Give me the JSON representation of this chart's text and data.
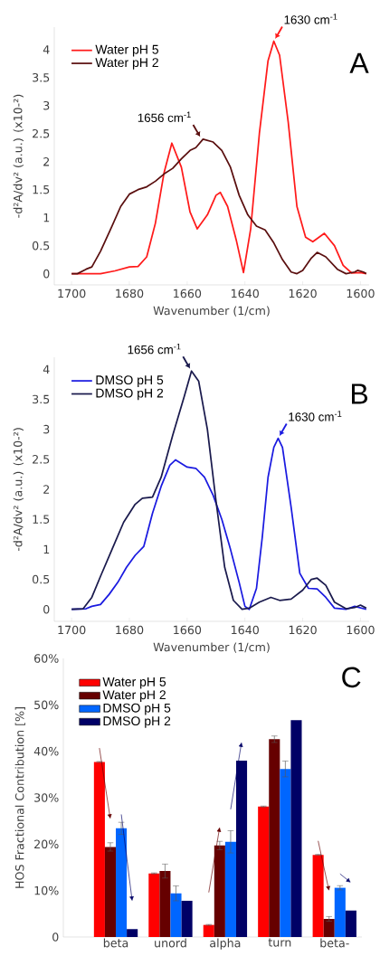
{
  "chart_data": [
    {
      "type": "line",
      "xlabel": "Wavenumber (1/cm)",
      "ylabel": "-d²A/dv² (a.u.) (x10-²)",
      "xlim": [
        1706,
        1597
      ],
      "ylim": [
        -0.2,
        4.4
      ],
      "xticks": [
        1700,
        1680,
        1660,
        1640,
        1620,
        1600
      ],
      "yticks": [
        0,
        0.5,
        1,
        1.5,
        2,
        2.5,
        3,
        3.5,
        4
      ],
      "legend": "top left",
      "annotations": [
        {
          "text": "1630 cm$^{-1}$",
          "x": 1630,
          "y": 4.15
        },
        {
          "text": "1656 cm$^{-1}$",
          "x": 1655,
          "y": 2.4
        },
        "A"
      ],
      "series": [
        {
          "name": "Water pH 5",
          "color": "#ff1a1a",
          "x": [
            1700,
            1690,
            1685,
            1680,
            1677,
            1674,
            1671,
            1668,
            1665.3,
            1662,
            1659,
            1656.5,
            1653,
            1650,
            1648.5,
            1646,
            1643,
            1640.5,
            1638,
            1635,
            1632,
            1630,
            1628,
            1625,
            1622,
            1619,
            1616.5,
            1612.5,
            1609,
            1606,
            1603,
            1600,
            1598
          ],
          "values": [
            0,
            0,
            0.05,
            0.12,
            0.13,
            0.3,
            0.9,
            1.8,
            2.33,
            1.9,
            1.1,
            0.8,
            1.05,
            1.4,
            1.45,
            1.2,
            0.6,
            0.02,
            0.8,
            2.5,
            3.8,
            4.15,
            3.9,
            2.7,
            1.2,
            0.65,
            0.57,
            0.72,
            0.5,
            0.15,
            0.01,
            0.02,
            0
          ]
        },
        {
          "name": "Water pH 2",
          "color": "#5a0f0f",
          "x": [
            1700,
            1698,
            1695,
            1693,
            1690,
            1686,
            1683,
            1680,
            1677,
            1674,
            1671,
            1668,
            1665,
            1662,
            1659,
            1657,
            1654.5,
            1651,
            1648,
            1645,
            1642,
            1639,
            1636,
            1633,
            1630,
            1627,
            1624,
            1622,
            1620,
            1617,
            1615,
            1612,
            1608,
            1605,
            1602,
            1601,
            1599,
            1598
          ],
          "values": [
            0,
            0,
            0.08,
            0.12,
            0.4,
            0.85,
            1.2,
            1.42,
            1.5,
            1.55,
            1.65,
            1.78,
            1.88,
            2.05,
            2.2,
            2.25,
            2.4,
            2.35,
            2.2,
            1.9,
            1.4,
            1.05,
            0.85,
            0.78,
            0.55,
            0.25,
            0.03,
            0,
            0.06,
            0.28,
            0.38,
            0.3,
            0.08,
            0,
            0.03,
            0.06,
            0.03,
            0
          ]
        }
      ]
    },
    {
      "type": "line",
      "xlabel": "Wavenumber (1/cm)",
      "ylabel": "-d²A/dv² (a.u.) (x10-²)",
      "xlim": [
        1706,
        1597
      ],
      "ylim": [
        -0.2,
        4.2
      ],
      "xticks": [
        1700,
        1680,
        1660,
        1640,
        1620,
        1600
      ],
      "yticks": [
        0,
        0.5,
        1,
        1.5,
        2,
        2.5,
        3,
        3.5,
        4
      ],
      "legend": "top left",
      "annotations": [
        {
          "text": "1656 cm$^{-1}$",
          "x": 1658.5,
          "y": 3.97
        },
        {
          "text": "1630 cm$^{-1}$",
          "x": 1628.5,
          "y": 2.85
        },
        "B"
      ],
      "series": [
        {
          "name": "DMSO pH 5",
          "color": "#1a1ae0",
          "x": [
            1700,
            1695,
            1693,
            1690,
            1687,
            1684,
            1681,
            1678,
            1675,
            1672,
            1669,
            1666,
            1664,
            1660,
            1657,
            1654,
            1651,
            1648,
            1645,
            1642,
            1640,
            1638.5,
            1636,
            1634,
            1632,
            1630,
            1628.5,
            1627,
            1624,
            1621,
            1618,
            1615,
            1612,
            1609,
            1605,
            1602,
            1598
          ],
          "values": [
            0,
            0.01,
            0.05,
            0.08,
            0.25,
            0.45,
            0.7,
            0.9,
            1.05,
            1.6,
            2.05,
            2.4,
            2.49,
            2.37,
            2.35,
            2.2,
            1.9,
            1.5,
            1.0,
            0.45,
            0.05,
            0,
            0.35,
            1.2,
            2.2,
            2.7,
            2.85,
            2.7,
            1.7,
            0.6,
            0.35,
            0.34,
            0.2,
            0.02,
            0,
            0.05,
            0
          ]
        },
        {
          "name": "DMSO pH 2",
          "color": "#1a1a4d",
          "x": [
            1700,
            1696,
            1693,
            1690,
            1686,
            1682,
            1678,
            1675.5,
            1672,
            1669,
            1665,
            1661,
            1658.5,
            1656,
            1653,
            1650,
            1647,
            1644,
            1641,
            1638.5,
            1635,
            1631,
            1628,
            1624,
            1620,
            1617,
            1615,
            1612,
            1609,
            1605,
            1602,
            1600,
            1598
          ],
          "values": [
            0,
            0.01,
            0.2,
            0.55,
            1.0,
            1.45,
            1.75,
            1.85,
            1.87,
            2.2,
            2.9,
            3.55,
            3.97,
            3.8,
            3.0,
            1.8,
            0.7,
            0.15,
            0,
            0.02,
            0.12,
            0.2,
            0.15,
            0.17,
            0.32,
            0.5,
            0.52,
            0.4,
            0.12,
            0.01,
            0.03,
            0.07,
            0.02
          ]
        }
      ]
    },
    {
      "type": "bar",
      "categories": [
        "beta",
        "unord",
        "alpha",
        "turn",
        "beta-"
      ],
      "ylabel": "HOS Fractional Contribution [%]",
      "ylim": [
        0,
        60
      ],
      "yticks": [
        0,
        {
          "value": 10,
          "label": "10%"
        },
        {
          "value": 20,
          "label": "20%"
        },
        {
          "value": 30,
          "label": "30%"
        },
        {
          "value": 40,
          "label": "40%"
        },
        {
          "value": 50,
          "label": "50%"
        },
        {
          "value": 60,
          "label": "60%"
        }
      ],
      "legend": "top left",
      "annotations": [
        "C"
      ],
      "series": [
        {
          "name": "Water pH 5",
          "color": "#ff0000",
          "values": [
            37.7,
            13.7,
            2.6,
            28.1,
            17.7
          ],
          "errors": [
            0.1,
            0.1,
            0.1,
            0.1,
            0.1
          ]
        },
        {
          "name": "Water pH 2",
          "color": "#660000",
          "values": [
            19.4,
            14.2,
            19.7,
            42.6,
            3.9
          ],
          "errors": [
            0.9,
            1.5,
            0.9,
            0.7,
            0.5
          ]
        },
        {
          "name": "DMSO pH 5",
          "color": "#0066ff",
          "values": [
            23.4,
            9.4,
            20.5,
            36.2,
            10.6
          ],
          "errors": [
            1.3,
            1.6,
            2.4,
            1.7,
            0.45
          ]
        },
        {
          "name": "DMSO pH 2",
          "color": "#000066",
          "values": [
            1.7,
            7.8,
            38,
            46.7,
            5.7
          ],
          "errors": [
            null,
            null,
            null,
            null,
            null
          ]
        }
      ]
    }
  ]
}
